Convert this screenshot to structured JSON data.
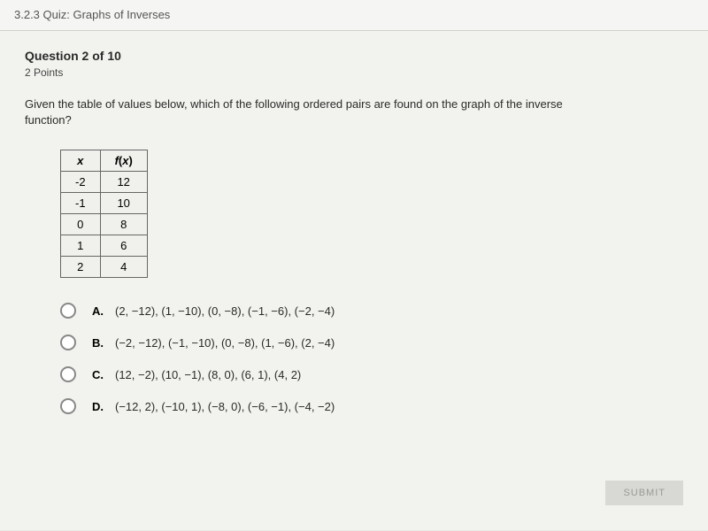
{
  "header": {
    "title": "3.2.3 Quiz: Graphs of Inverses"
  },
  "question": {
    "number_label": "Question 2 of 10",
    "points": "2 Points",
    "prompt": "Given the table of values below, which of the following ordered pairs are found on the graph of the inverse function?"
  },
  "table": {
    "col_x": "x",
    "col_fx": "f(x)",
    "rows": [
      {
        "x": "-2",
        "fx": "12"
      },
      {
        "x": "-1",
        "fx": "10"
      },
      {
        "x": "0",
        "fx": "8"
      },
      {
        "x": "1",
        "fx": "6"
      },
      {
        "x": "2",
        "fx": "4"
      }
    ]
  },
  "options": {
    "items": [
      {
        "letter": "A.",
        "text": "(2, −12), (1, −10), (0, −8), (−1, −6), (−2, −4)"
      },
      {
        "letter": "B.",
        "text": "(−2, −12), (−1, −10), (0, −8), (1, −6), (2, −4)"
      },
      {
        "letter": "C.",
        "text": "(12, −2), (10, −1), (8, 0), (6, 1), (4, 2)"
      },
      {
        "letter": "D.",
        "text": "(−12, 2), (−10, 1), (−8, 0), (−6, −1), (−4, −2)"
      }
    ]
  },
  "buttons": {
    "submit": "SUBMIT"
  },
  "colors": {
    "background": "#e8e8e4",
    "content_bg": "#f2f2ee",
    "border": "#666",
    "text": "#2a2a2a",
    "muted": "#555"
  }
}
